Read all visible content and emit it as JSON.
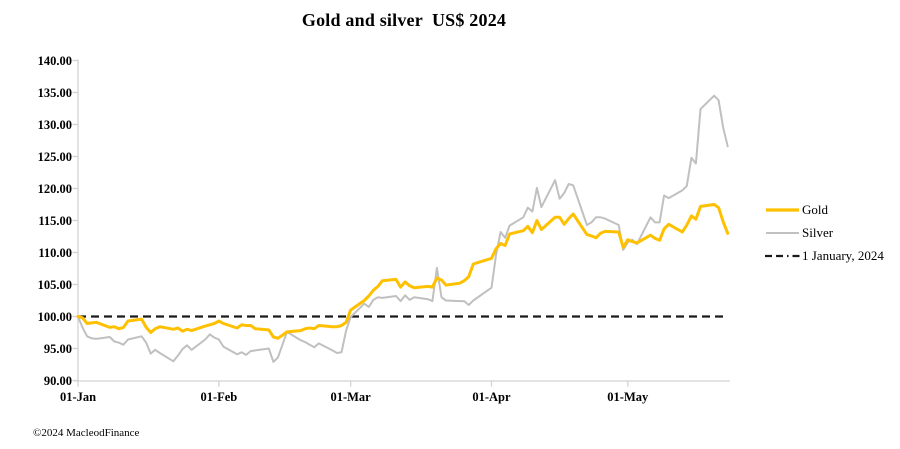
{
  "title": "Gold and silver  US$ 2024",
  "footer": {
    "copyright": "©2024 MacleodFinance"
  },
  "colors": {
    "gold": "#FFC000",
    "silver": "#C0C0C0",
    "baseline": "#1A1A1A",
    "axis": "#D2D2D2",
    "text": "#000000",
    "background": "#FFFFFF"
  },
  "chart_data": {
    "type": "line",
    "title": "Gold and silver  US$ 2024",
    "xlabel": "",
    "ylabel": "",
    "ylim": [
      90,
      140
    ],
    "xlim_days": [
      0,
      143.5
    ],
    "grid": false,
    "legend_position": "right",
    "y_ticks": [
      {
        "value": 140,
        "label": "140.00"
      },
      {
        "value": 135,
        "label": "135.00"
      },
      {
        "value": 130,
        "label": "130.00"
      },
      {
        "value": 125,
        "label": "125.00"
      },
      {
        "value": 120,
        "label": "120.00"
      },
      {
        "value": 115,
        "label": "115.00"
      },
      {
        "value": 110,
        "label": "110.00"
      },
      {
        "value": 105,
        "label": "105.00"
      },
      {
        "value": 100,
        "label": "100.00"
      },
      {
        "value": 95,
        "label": "95.00"
      },
      {
        "value": 90,
        "label": "90.00"
      }
    ],
    "x_ticks": [
      {
        "day": 0,
        "label": "01-Jan"
      },
      {
        "day": 31,
        "label": "01-Feb"
      },
      {
        "day": 60,
        "label": "01-Mar"
      },
      {
        "day": 91,
        "label": "01-Apr"
      },
      {
        "day": 121,
        "label": "01-May"
      }
    ],
    "baseline": {
      "value": 100,
      "label": "1 January, 2024",
      "style": "dashed",
      "color": "#1A1A1A"
    },
    "x_unit": "days since 1 January 2024 (business days)",
    "day_index": [
      0,
      1,
      2,
      3,
      4,
      7,
      8,
      9,
      10,
      11,
      14,
      15,
      16,
      17,
      18,
      21,
      22,
      23,
      24,
      25,
      28,
      29,
      30,
      31,
      32,
      35,
      36,
      37,
      38,
      39,
      42,
      43,
      44,
      45,
      46,
      49,
      50,
      51,
      52,
      53,
      56,
      57,
      58,
      59,
      60,
      63,
      64,
      65,
      66,
      67,
      70,
      71,
      72,
      73,
      74,
      77,
      78,
      79,
      80,
      81,
      84,
      85,
      86,
      87,
      91,
      92,
      93,
      94,
      95,
      98,
      99,
      100,
      101,
      102,
      105,
      106,
      107,
      108,
      109,
      112,
      113,
      114,
      115,
      116,
      119,
      120,
      121,
      122,
      123,
      126,
      127,
      128,
      129,
      130,
      133,
      134,
      135,
      136,
      137,
      140,
      141,
      142,
      143
    ],
    "series": [
      {
        "name": "Gold",
        "color": "#FFC000",
        "width": 3,
        "values": [
          100,
          99.8,
          98.9,
          99,
          99.1,
          98.3,
          98.4,
          98.1,
          98.3,
          99.3,
          99.6,
          98.3,
          97.5,
          98.1,
          98.4,
          98,
          98.2,
          97.7,
          98,
          97.8,
          98.5,
          98.7,
          98.9,
          99.3,
          98.9,
          98.2,
          98.7,
          98.6,
          98.6,
          98.1,
          97.9,
          96.8,
          96.6,
          97.1,
          97.6,
          97.8,
          98.1,
          98.2,
          98.1,
          98.6,
          98.4,
          98.4,
          98.6,
          99.1,
          101,
          102.5,
          103.2,
          104.1,
          104.7,
          105.6,
          105.8,
          104.6,
          105.4,
          104.8,
          104.5,
          104.7,
          104.6,
          106,
          105.7,
          104.9,
          105.2,
          105.6,
          106.2,
          108.2,
          109.1,
          110.6,
          111.4,
          111.1,
          112.9,
          113.4,
          114.1,
          113.1,
          115,
          113.6,
          115.5,
          115.5,
          114.4,
          115.3,
          116,
          112.8,
          112.6,
          112.3,
          113,
          113.3,
          113.2,
          110.8,
          112,
          111.7,
          111.5,
          112.7,
          112.2,
          111.9,
          113.7,
          114.4,
          113.2,
          114.3,
          115.7,
          115.2,
          117.2,
          117.5,
          117,
          114.8,
          113
        ]
      },
      {
        "name": "Silver",
        "color": "#C0C0C0",
        "width": 2,
        "values": [
          100,
          98.3,
          96.9,
          96.6,
          96.5,
          96.8,
          96.1,
          95.9,
          95.6,
          96.4,
          96.9,
          95.9,
          94.2,
          94.8,
          94.3,
          93,
          93.9,
          94.9,
          95.5,
          94.8,
          96.4,
          97.2,
          96.7,
          96.4,
          95.3,
          94.1,
          94.4,
          94,
          94.6,
          94.7,
          95,
          92.9,
          93.6,
          95.6,
          97.6,
          96.3,
          96,
          95.6,
          95.2,
          95.8,
          94.7,
          94.3,
          94.4,
          97.8,
          99.9,
          102,
          101.5,
          102.6,
          103,
          102.9,
          103.2,
          102.4,
          103.3,
          102.6,
          103,
          102.7,
          102.4,
          107.6,
          103,
          102.5,
          102.4,
          102.4,
          101.8,
          102.5,
          104.5,
          109.6,
          113.2,
          112.3,
          114.2,
          115.5,
          117,
          116.4,
          120.1,
          117.1,
          121.3,
          118.4,
          119.3,
          120.7,
          120.5,
          114.3,
          114.7,
          115.5,
          115.5,
          115.3,
          114.3,
          110.4,
          111.6,
          112,
          111.3,
          115.5,
          114.7,
          114.7,
          118.9,
          118.5,
          119.7,
          120.4,
          124.8,
          123.9,
          132.4,
          134.5,
          133.8,
          129.5,
          126.6
        ]
      }
    ],
    "legend": [
      "Gold",
      "Silver",
      "1 January, 2024"
    ]
  }
}
